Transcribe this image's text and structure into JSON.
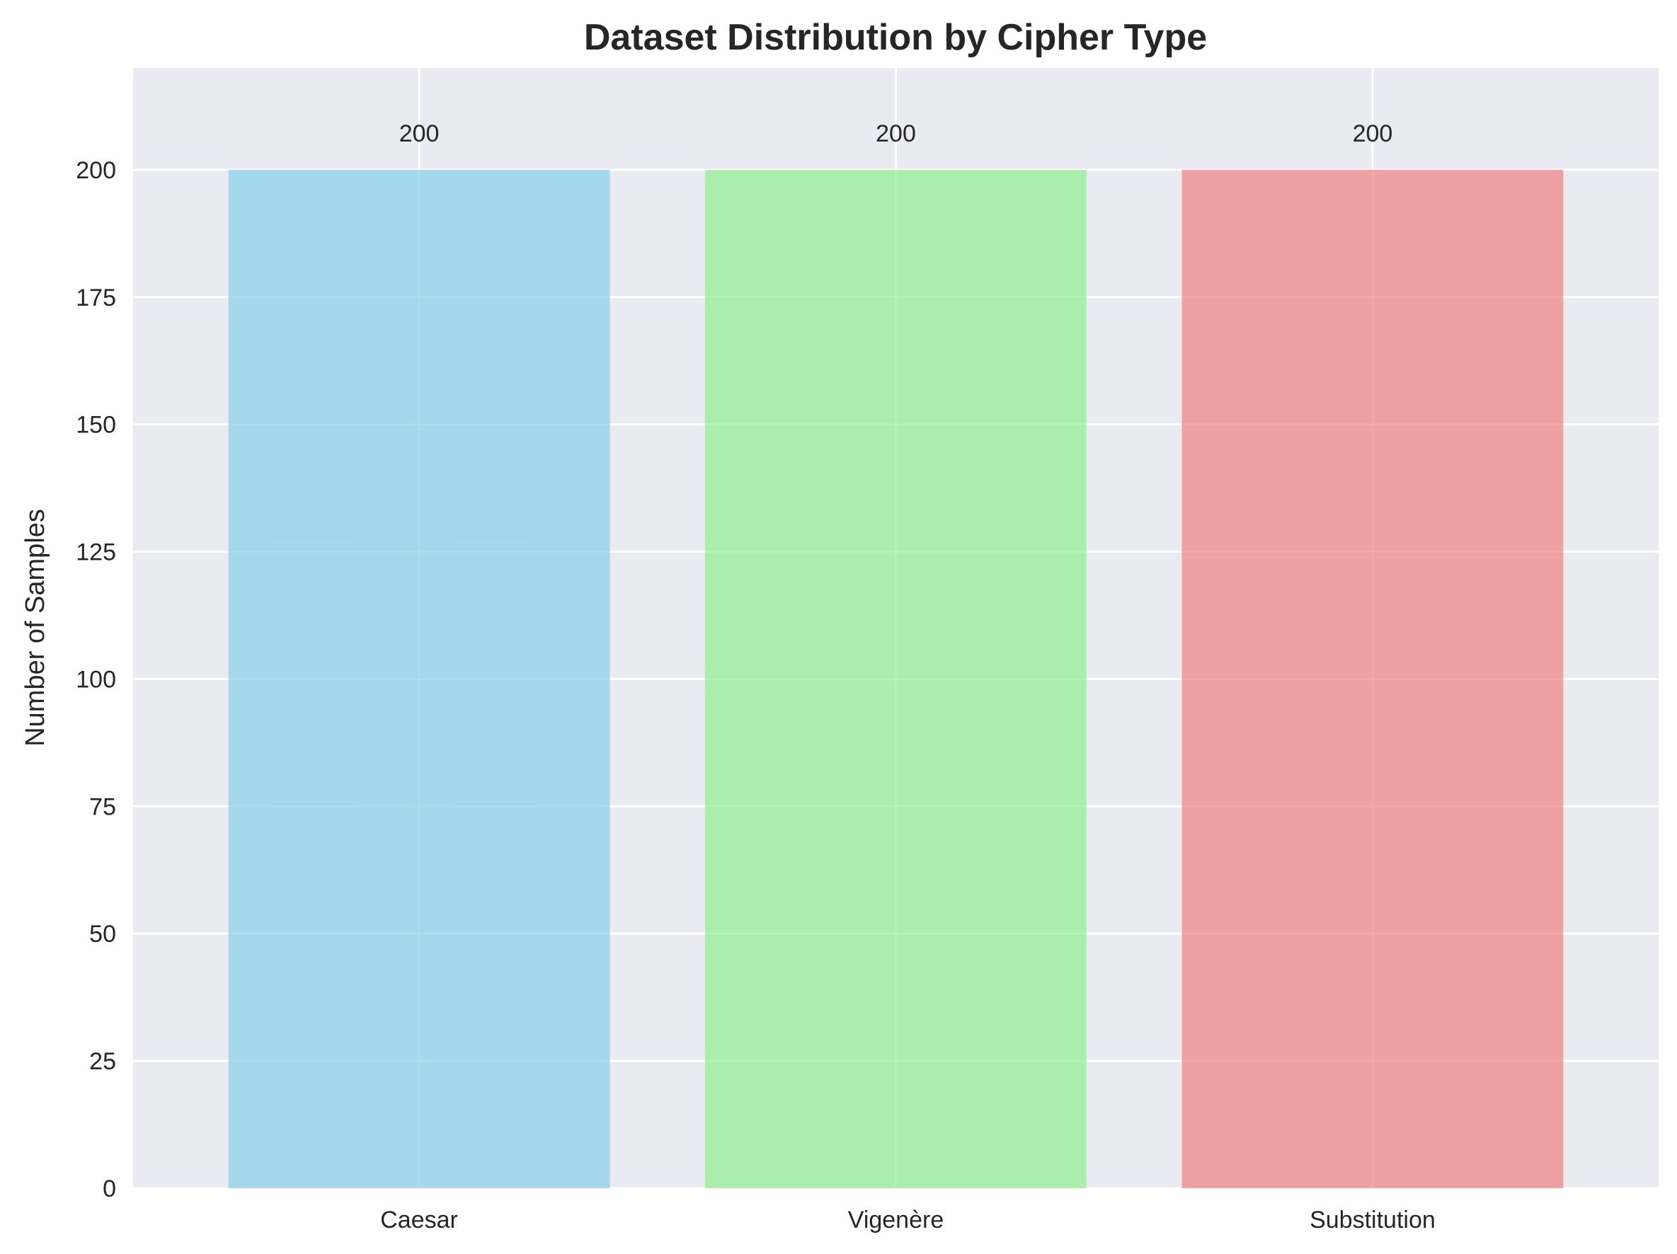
{
  "chart_data": {
    "type": "bar",
    "title": "Dataset Distribution by Cipher Type",
    "xlabel": "",
    "ylabel": "Number of Samples",
    "categories": [
      "Caesar",
      "Vigenère",
      "Substitution"
    ],
    "values": [
      200,
      200,
      200
    ],
    "data_labels": [
      "200",
      "200",
      "200"
    ],
    "colors": [
      "#87CEEB",
      "#90EE90",
      "#F08080"
    ],
    "bar_opacity": 0.7,
    "ylim": [
      0,
      220
    ],
    "yticks": [
      0,
      25,
      50,
      75,
      100,
      125,
      150,
      175,
      200
    ],
    "grid": true,
    "legend": "none",
    "background": "#EAEAF2"
  }
}
